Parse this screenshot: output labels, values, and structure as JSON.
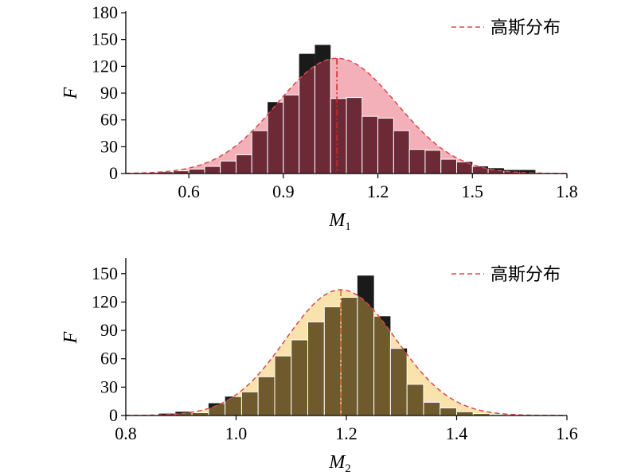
{
  "chart_data": [
    {
      "type": "bar",
      "xlabel": "M",
      "xlabel_subscript": "1",
      "ylabel": "F",
      "xlim": [
        0.4,
        1.8
      ],
      "ylim": [
        0,
        180
      ],
      "x_ticks": [
        "0.6",
        "0.9",
        "1.2",
        "1.5",
        "1.8"
      ],
      "y_ticks": [
        "0",
        "30",
        "60",
        "90",
        "120",
        "150",
        "180"
      ],
      "grid": false,
      "legend_position": "top-right",
      "legend": "高斯分布",
      "bin_width": 0.05,
      "bin_starts": [
        0.45,
        0.5,
        0.55,
        0.6,
        0.65,
        0.7,
        0.75,
        0.8,
        0.85,
        0.9,
        0.95,
        1.0,
        1.05,
        1.1,
        1.15,
        1.2,
        1.25,
        1.3,
        1.35,
        1.4,
        1.45,
        1.5,
        1.55,
        1.6,
        1.65
      ],
      "values": [
        0,
        2,
        3,
        5,
        8,
        14,
        21,
        48,
        80,
        88,
        134,
        144,
        84,
        85,
        64,
        62,
        48,
        27,
        26,
        16,
        13,
        8,
        6,
        4,
        4
      ],
      "gaussian": {
        "mean": 1.07,
        "peak": 129,
        "sigma": 0.19
      },
      "mean_line_x": 1.07,
      "colors": {
        "bars": "#6b2a36",
        "bar_edge": "#ffffff",
        "fill": "#f2a7b0",
        "curve": "#d9484f",
        "mean_line": "#cc2a2a",
        "overflow": "#1b1a1a"
      }
    },
    {
      "type": "bar",
      "xlabel": "M",
      "xlabel_subscript": "2",
      "ylabel": "F",
      "xlim": [
        0.8,
        1.6
      ],
      "ylim": [
        0,
        165
      ],
      "x_ticks": [
        "0.8",
        "1.0",
        "1.2",
        "1.4",
        "1.6"
      ],
      "y_ticks": [
        "0",
        "30",
        "60",
        "90",
        "120",
        "150"
      ],
      "grid": false,
      "legend_position": "top-right",
      "legend": "高斯分布",
      "bin_width": 0.03,
      "bin_starts": [
        0.86,
        0.89,
        0.92,
        0.95,
        0.98,
        1.01,
        1.04,
        1.07,
        1.1,
        1.13,
        1.16,
        1.19,
        1.22,
        1.25,
        1.28,
        1.31,
        1.34,
        1.37,
        1.4,
        1.43,
        1.46
      ],
      "values": [
        2,
        4,
        3,
        13,
        20,
        25,
        41,
        63,
        80,
        99,
        115,
        125,
        148,
        105,
        71,
        33,
        14,
        8,
        4,
        2,
        1
      ],
      "gaussian": {
        "mean": 1.19,
        "peak": 133,
        "sigma": 0.1
      },
      "mean_line_x": 1.19,
      "colors": {
        "bars": "#6e5a2c",
        "bar_edge": "#ffffff",
        "fill": "#f8dfa2",
        "curve": "#d9484f",
        "mean_line": "#e06a2a",
        "overflow": "#1b1a1a"
      }
    }
  ]
}
